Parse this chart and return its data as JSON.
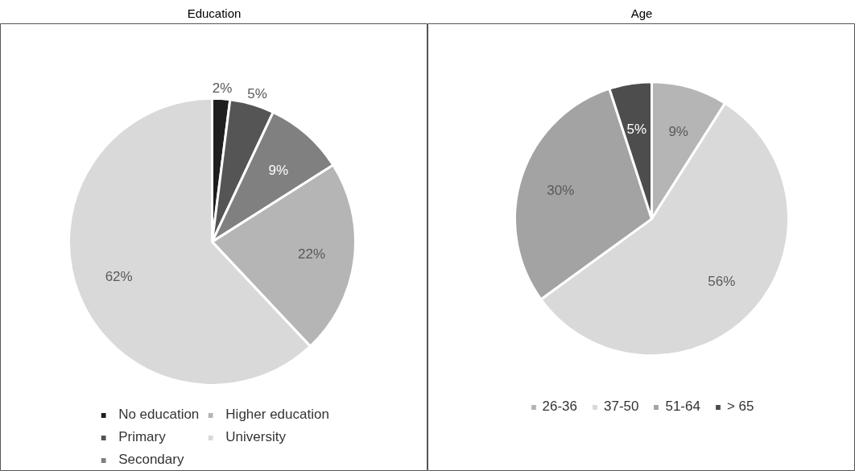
{
  "chart_data": [
    {
      "type": "pie",
      "title": "Education",
      "categories": [
        "No education",
        "Primary",
        "Secondary",
        "Higher education",
        "University"
      ],
      "values": [
        2,
        5,
        9,
        22,
        62
      ],
      "colors": [
        "#1f1f1f",
        "#555555",
        "#808080",
        "#b5b5b5",
        "#d9d9d9"
      ],
      "value_labels": [
        "2%",
        "5%",
        "9%",
        "22%",
        "62%"
      ],
      "legend": "bottom"
    },
    {
      "type": "pie",
      "title": "Age",
      "categories": [
        "26-36",
        "37-50",
        "51-64",
        "> 65"
      ],
      "values": [
        9,
        56,
        30,
        5
      ],
      "colors": [
        "#b5b5b5",
        "#d9d9d9",
        "#a3a3a3",
        "#4d4d4d"
      ],
      "value_labels": [
        "9%",
        "56%",
        "30%",
        "5%"
      ],
      "legend": "bottom"
    }
  ]
}
